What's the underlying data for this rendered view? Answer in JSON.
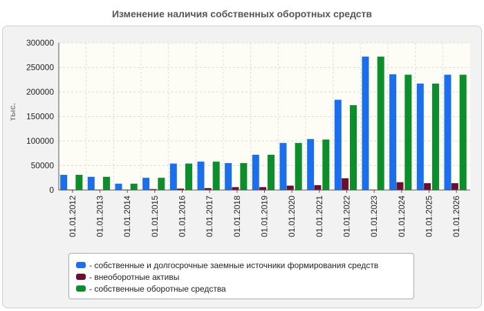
{
  "chart_data": {
    "type": "bar",
    "title": "Изменение наличия собственных оборотных средств",
    "ylabel": "тыс.",
    "xlabel": "",
    "ylim": [
      0,
      300000
    ],
    "yticks": [
      0,
      50000,
      100000,
      150000,
      200000,
      250000,
      300000
    ],
    "grid": true,
    "legend_position": "bottom",
    "categories": [
      "01.01.2012",
      "01.01.2013",
      "01.01.2014",
      "01.01.2015",
      "01.01.2016",
      "01.01.2017",
      "01.01.2018",
      "01.01.2019",
      "01.01.2020",
      "01.01.2021",
      "01.01.2022",
      "01.01.2023",
      "01.01.2024",
      "01.01.2025",
      "01.01.2026"
    ],
    "series": [
      {
        "name": "- собственные и долгосрочные заемные источники формирования средств",
        "color": "#1a6ff0",
        "values": [
          31000,
          27000,
          13000,
          25000,
          54000,
          58000,
          55000,
          72000,
          96000,
          104000,
          184000,
          272000,
          236000,
          217000,
          235000
        ]
      },
      {
        "name": "- внеоборотные активы",
        "color": "#6b0f2e",
        "values": [
          1000,
          1000,
          1000,
          2000,
          3000,
          4000,
          6000,
          6000,
          9000,
          10000,
          24000,
          1000,
          16000,
          14000,
          14000
        ]
      },
      {
        "name": "- собственные оборотные средства",
        "color": "#0a8f2a",
        "values": [
          31000,
          27000,
          13000,
          25000,
          54000,
          58000,
          55000,
          72000,
          96000,
          103000,
          173000,
          272000,
          235000,
          217000,
          235000
        ]
      }
    ]
  }
}
